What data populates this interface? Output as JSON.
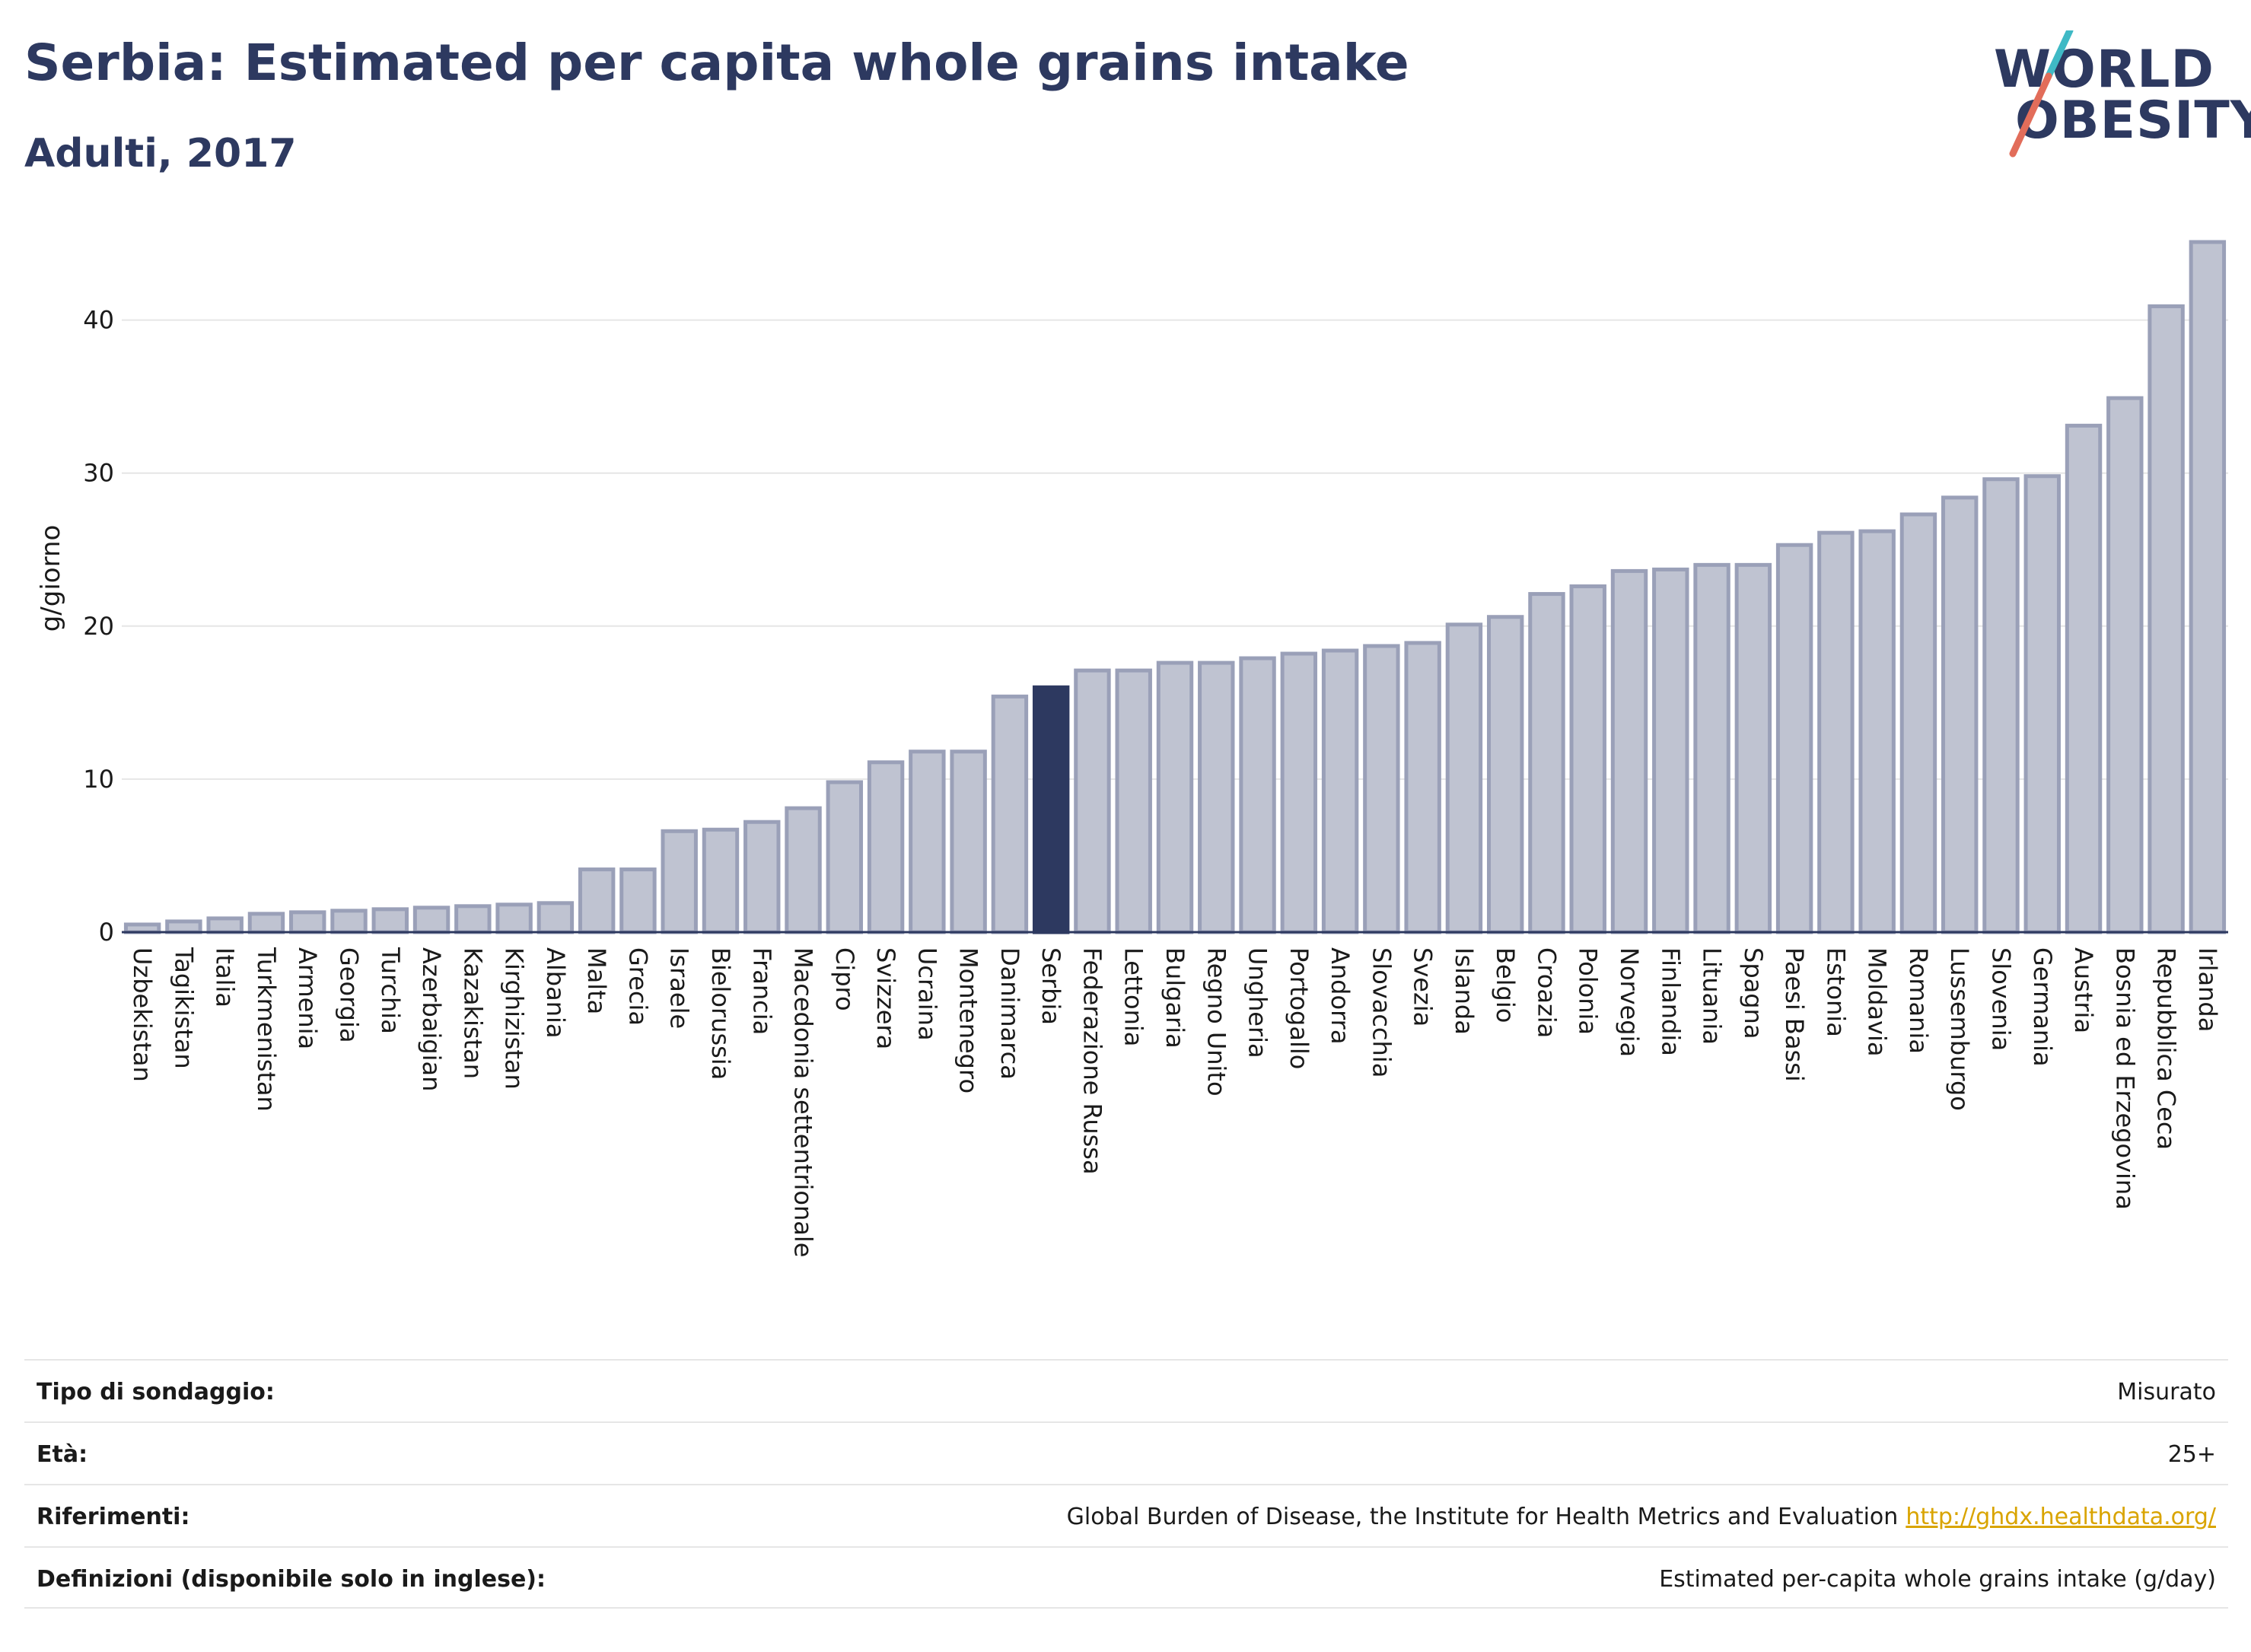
{
  "header": {
    "title": "Serbia: Estimated per capita whole grains intake",
    "subtitle": "Adulti, 2017"
  },
  "logo": {
    "line1": "WORLD",
    "line2": "OBESITY"
  },
  "colors": {
    "bar": "#bfc3d1",
    "bar_border": "#9aa0b8",
    "highlight": "#2d3960",
    "gridline": "#e6e6e6",
    "title": "#2d3960",
    "link": "#d9a400"
  },
  "chart_data": {
    "type": "bar",
    "ylabel": "g/giorno",
    "ylim": [
      0,
      45.5
    ],
    "yticks": [
      0,
      10,
      20,
      30,
      40
    ],
    "grid": true,
    "highlight": "Serbia",
    "categories": [
      "Uzbekistan",
      "Tagikistan",
      "Italia",
      "Turkmenistan",
      "Armenia",
      "Georgia",
      "Turchia",
      "Azerbaigian",
      "Kazakistan",
      "Kirghizistan",
      "Albania",
      "Malta",
      "Grecia",
      "Israele",
      "Bielorussia",
      "Francia",
      "Macedonia settentrionale",
      "Cipro",
      "Svizzera",
      "Ucraina",
      "Montenegro",
      "Danimarca",
      "Serbia",
      "Federazione Russa",
      "Lettonia",
      "Bulgaria",
      "Regno Unito",
      "Ungheria",
      "Portogallo",
      "Andorra",
      "Slovacchia",
      "Svezia",
      "Islanda",
      "Belgio",
      "Croazia",
      "Polonia",
      "Norvegia",
      "Finlandia",
      "Lituania",
      "Spagna",
      "Paesi Bassi",
      "Estonia",
      "Moldavia",
      "Romania",
      "Lussemburgo",
      "Slovenia",
      "Germania",
      "Austria",
      "Bosnia ed Erzegovina",
      "Repubblica Ceca",
      "Irlanda"
    ],
    "values": [
      0.5,
      0.7,
      0.9,
      1.2,
      1.3,
      1.4,
      1.5,
      1.6,
      1.7,
      1.8,
      1.9,
      4.1,
      4.1,
      6.6,
      6.7,
      7.2,
      8.1,
      9.8,
      11.1,
      11.8,
      11.8,
      15.4,
      16.0,
      17.1,
      17.1,
      17.6,
      17.6,
      17.9,
      18.2,
      18.4,
      18.7,
      18.9,
      20.1,
      20.6,
      22.1,
      22.6,
      23.6,
      23.7,
      24.0,
      24.0,
      25.3,
      26.1,
      26.2,
      27.3,
      28.4,
      29.6,
      29.8,
      33.1,
      34.9,
      40.9,
      45.1
    ]
  },
  "meta": {
    "rows": [
      {
        "label": "Tipo di sondaggio:",
        "value": "Misurato"
      },
      {
        "label": "Età:",
        "value": "25+"
      },
      {
        "label": "Riferimenti:",
        "value": "Global Burden of Disease, the Institute for Health Metrics and Evaluation",
        "link": "http://ghdx.healthdata.org/"
      },
      {
        "label": "Definizioni (disponibile solo in inglese):",
        "value": "Estimated per-capita whole grains intake (g/day)"
      }
    ]
  }
}
